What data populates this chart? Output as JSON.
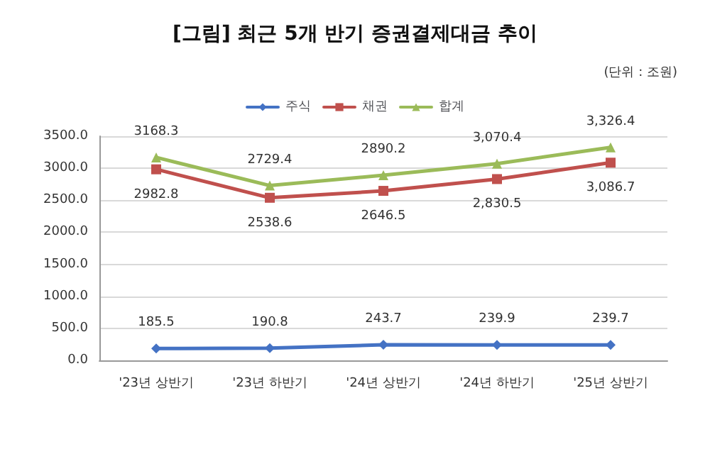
{
  "chart_data": {
    "type": "line",
    "title": "[그림] 최근 5개 반기 증권결제대금 추이",
    "subtitle": "(단위 : 조원)",
    "categories": [
      "'23년 상반기",
      "'23년 하반기",
      "'24년 상반기",
      "'24년 하반기",
      "'25년 상반기"
    ],
    "series": [
      {
        "name": "주식",
        "color": "#4472c4",
        "marker": "diamond",
        "values": [
          185.5,
          190.8,
          243.7,
          239.9,
          239.7
        ],
        "value_labels": [
          "185.5",
          "190.8",
          "243.7",
          "239.9",
          "239.7"
        ]
      },
      {
        "name": "채권",
        "color": "#c0504d",
        "marker": "square",
        "values": [
          2982.8,
          2538.6,
          2646.5,
          2830.5,
          3086.7
        ],
        "value_labels": [
          "2982.8",
          "2538.6",
          "2646.5",
          "2,830.5",
          "3,086.7"
        ]
      },
      {
        "name": "합계",
        "color": "#9bbb59",
        "marker": "triangle",
        "values": [
          3168.3,
          2729.4,
          2890.2,
          3070.4,
          3326.4
        ],
        "value_labels": [
          "3168.3",
          "2729.4",
          "2890.2",
          "3,070.4",
          "3,326.4"
        ]
      }
    ],
    "ylim": [
      0,
      3500
    ],
    "yticks": [
      {
        "value": 0,
        "label": "0.0"
      },
      {
        "value": 500,
        "label": "500.0"
      },
      {
        "value": 1000,
        "label": "1000.0"
      },
      {
        "value": 1500,
        "label": "1500.0"
      },
      {
        "value": 2000,
        "label": "2000.0"
      },
      {
        "value": 2500,
        "label": "2500.0"
      },
      {
        "value": 3000,
        "label": "3000.0"
      },
      {
        "value": 3500,
        "label": "3500.0"
      }
    ],
    "grid": "y",
    "legend": "top",
    "line_style": "solid"
  }
}
